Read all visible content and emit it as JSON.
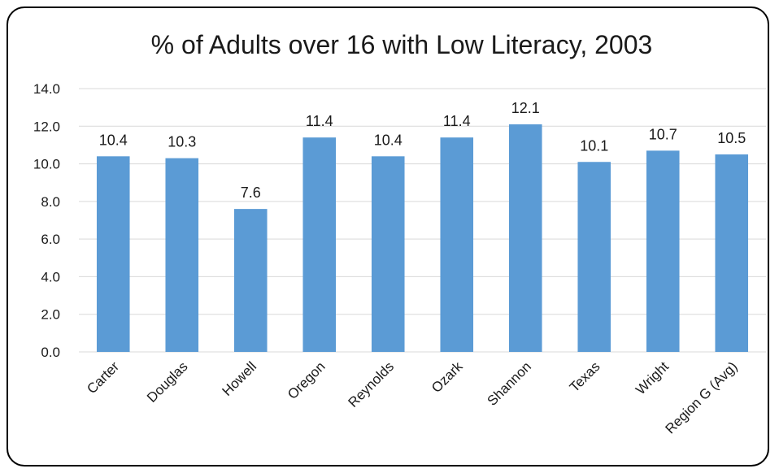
{
  "chart_data": {
    "type": "bar",
    "title": "% of Adults over 16 with Low Literacy, 2003",
    "categories": [
      "Carter",
      "Douglas",
      "Howell",
      "Oregon",
      "Reynolds",
      "Ozark",
      "Shannon",
      "Texas",
      "Wright",
      "Region G (Avg)"
    ],
    "values": [
      10.4,
      10.3,
      7.6,
      11.4,
      10.4,
      11.4,
      12.1,
      10.1,
      10.7,
      10.5
    ],
    "data_labels": [
      "10.4",
      "10.3",
      "7.6",
      "11.4",
      "10.4",
      "11.4",
      "12.1",
      "10.1",
      "10.7",
      "10.5"
    ],
    "y_ticks": [
      "0.0",
      "2.0",
      "4.0",
      "6.0",
      "8.0",
      "10.0",
      "12.0",
      "14.0"
    ],
    "ylim": [
      0,
      14
    ],
    "xlabel": "",
    "ylabel": "",
    "grid": true,
    "legend": "none",
    "bar_color": "#5b9bd5",
    "grid_color": "#d9d9d9"
  }
}
